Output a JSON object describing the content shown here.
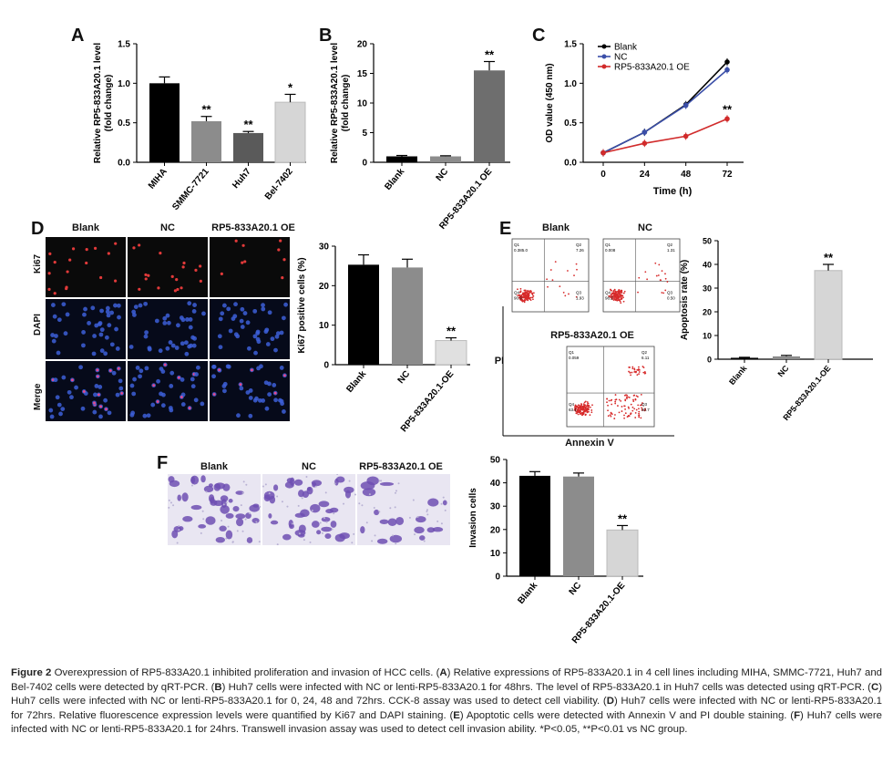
{
  "panels": {
    "A": "A",
    "B": "B",
    "C": "C",
    "D": "D",
    "E": "E",
    "F": "F"
  },
  "panelD": {
    "columns": [
      "Blank",
      "NC",
      "RP5-833A20.1 OE"
    ],
    "rows": [
      "Ki67",
      "DAPI",
      "Merge"
    ]
  },
  "panelE": {
    "top_titles": [
      "Blank",
      "NC"
    ],
    "bottom_title": "RP5-833A20.1 OE",
    "xlabel": "Annexin V",
    "ylabel": "PI",
    "plots": [
      {
        "q1": "Q1\n0.385.0",
        "q2": "Q2\n7.26",
        "q3": "Q3\n1.93",
        "q4": "Q4\n90.9"
      },
      {
        "q1": "Q1\n0.008",
        "q2": "Q2\n1.31",
        "q3": "Q3\n0.50",
        "q4": "Q4\n98.2"
      },
      {
        "q1": "Q1\n0.059",
        "q2": "Q2\n6.11",
        "q3": "Q3\n30.7",
        "q4": "Q4\n63.1"
      }
    ]
  },
  "panelF": {
    "columns": [
      "Blank",
      "NC",
      "RP5-833A20.1 OE"
    ]
  },
  "chart_data": [
    {
      "id": "A",
      "type": "bar",
      "categories": [
        "MIHA",
        "SMMC-7721",
        "Huh7",
        "Bel-7402"
      ],
      "values": [
        1.0,
        0.52,
        0.37,
        0.76
      ],
      "errors": [
        0.08,
        0.06,
        0.02,
        0.1
      ],
      "sig": [
        "",
        "**",
        "**",
        "*"
      ],
      "colors": [
        "#000000",
        "#8c8c8c",
        "#5a5a5a",
        "#d6d6d6"
      ],
      "ylabel": "Relative RP5-833A20.1 level\n(fold change)",
      "ylim": [
        0,
        1.5
      ],
      "yticks": [
        "0.0",
        "0.5",
        "1.0",
        "1.5"
      ]
    },
    {
      "id": "B",
      "type": "bar",
      "categories": [
        "Blank",
        "NC",
        "RP5-833A20.1 OE"
      ],
      "values": [
        1.0,
        1.0,
        15.5
      ],
      "errors": [
        0.15,
        0.1,
        1.5
      ],
      "sig": [
        "",
        "",
        "**"
      ],
      "colors": [
        "#000000",
        "#8c8c8c",
        "#6e6e6e"
      ],
      "ylabel": "Relative RP5-833A20.1 level\n(fold change)",
      "ylim": [
        0,
        20
      ],
      "yticks": [
        "0",
        "5",
        "10",
        "15",
        "20"
      ]
    },
    {
      "id": "C",
      "type": "line",
      "x": [
        0,
        24,
        48,
        72
      ],
      "xticks": [
        "0",
        "24",
        "48",
        "72"
      ],
      "series": [
        {
          "name": "Blank",
          "values": [
            0.12,
            0.38,
            0.73,
            1.27
          ],
          "color": "#000000"
        },
        {
          "name": "NC",
          "values": [
            0.12,
            0.38,
            0.72,
            1.17
          ],
          "color": "#3b4fa8"
        },
        {
          "name": "RP5-833A20.1 OE",
          "values": [
            0.12,
            0.24,
            0.33,
            0.55
          ],
          "color": "#d12b2b"
        }
      ],
      "sig_label": "**",
      "xlabel": "Time (h)",
      "ylabel": "OD value (450 nm)",
      "ylim": [
        0,
        1.5
      ],
      "yticks": [
        "0.0",
        "0.5",
        "1.0",
        "1.5"
      ]
    },
    {
      "id": "D",
      "type": "bar",
      "categories": [
        "Blank",
        "NC",
        "RP5-833A20.1-OE"
      ],
      "values": [
        25.3,
        24.6,
        6.1
      ],
      "errors": [
        2.5,
        2.1,
        0.7
      ],
      "sig": [
        "",
        "",
        "**"
      ],
      "colors": [
        "#000000",
        "#8c8c8c",
        "#e0e0e0"
      ],
      "ylabel": "Ki67 positive cells (%)",
      "ylim": [
        0,
        30
      ],
      "yticks": [
        "0",
        "10",
        "20",
        "30"
      ]
    },
    {
      "id": "E",
      "type": "bar",
      "categories": [
        "Blank",
        "NC",
        "RP5-833A20.1-OE"
      ],
      "values": [
        0.6,
        1.2,
        37.4
      ],
      "errors": [
        0.2,
        0.4,
        2.6
      ],
      "sig": [
        "",
        "",
        "**"
      ],
      "colors": [
        "#000000",
        "#8c8c8c",
        "#d6d6d6"
      ],
      "ylabel": "Apoptosis rate (%)",
      "ylim": [
        0,
        50
      ],
      "yticks": [
        "0",
        "10",
        "20",
        "30",
        "40",
        "50"
      ]
    },
    {
      "id": "F",
      "type": "bar",
      "categories": [
        "Blank",
        "NC",
        "RP5-833A20.1-OE"
      ],
      "values": [
        43.0,
        42.7,
        19.8
      ],
      "errors": [
        1.8,
        1.5,
        1.9
      ],
      "sig": [
        "",
        "",
        "**"
      ],
      "colors": [
        "#000000",
        "#8c8c8c",
        "#d6d6d6"
      ],
      "ylabel": "Invasion cells",
      "ylim": [
        0,
        50
      ],
      "yticks": [
        "0",
        "10",
        "20",
        "30",
        "40",
        "50"
      ]
    }
  ],
  "caption": {
    "title": "Figure 2",
    "t1": " Overexpression of RP5-833A20.1 inhibited proliferation and invasion of HCC cells. (",
    "A": "A",
    "t2": ") Relative expressions of RP5-833A20.1 in 4 cell lines including MIHA, SMMC-7721, Huh7 and Bel-7402 cells were detected by qRT-PCR. (",
    "B": "B",
    "t3": ") Huh7 cells were infected with NC or lenti-RP5-833A20.1 for 48hrs. The level of RP5-833A20.1 in Huh7 cells was detected using qRT-PCR. (",
    "C": "C",
    "t4": ") Huh7 cells were infected with NC or lenti-RP5-833A20.1 for 0, 24, 48 and 72hrs. CCK-8 assay was used to detect cell viability. (",
    "D": "D",
    "t5": ") Huh7 cells were infected with NC or lenti-RP5-833A20.1 for 72hrs. Relative fluorescence expression levels were quantified by Ki67 and DAPI staining. (",
    "E": "E",
    "t6": ") Apoptotic cells were detected with Annexin V and PI double staining. (",
    "F": "F",
    "t7": ") Huh7 cells were infected with NC or lenti-RP5-833A20.1 for 24hrs. Transwell invasion assay was used to detect cell invasion ability. *P<0.05, **P<0.01 vs NC group."
  }
}
